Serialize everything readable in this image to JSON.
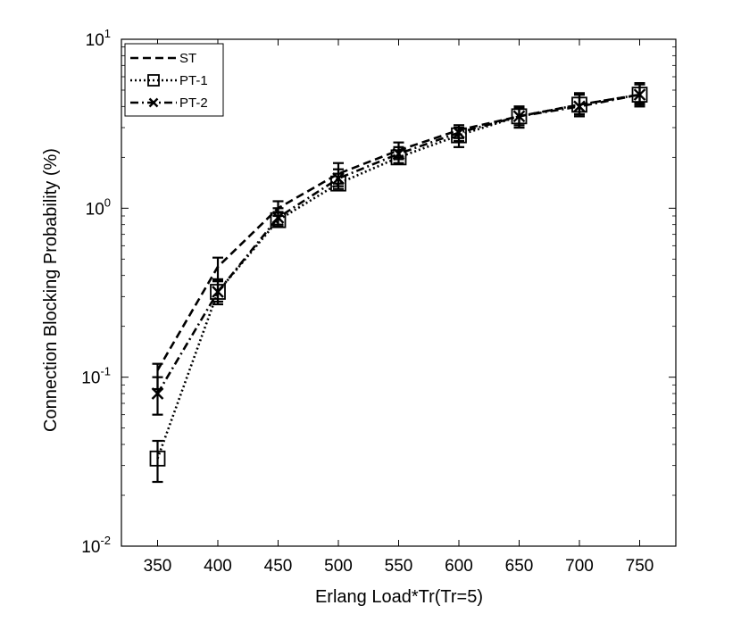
{
  "chart_data": {
    "type": "line",
    "xlabel": "Erlang Load*Tr(Tr=5)",
    "ylabel": "Connection Blocking Probability (%)",
    "x": [
      350,
      400,
      450,
      500,
      550,
      600,
      650,
      700,
      750
    ],
    "xlim": [
      320,
      780
    ],
    "xticks": [
      350,
      400,
      450,
      500,
      550,
      600,
      650,
      700,
      750
    ],
    "yscale": "log",
    "ylim": [
      0.01,
      10
    ],
    "yticks": [
      {
        "value": 0.01,
        "base": "10",
        "exp": "-2"
      },
      {
        "value": 0.1,
        "base": "10",
        "exp": "-1"
      },
      {
        "value": 1,
        "base": "10",
        "exp": "0"
      },
      {
        "value": 10,
        "base": "10",
        "exp": "1"
      }
    ],
    "grid": false,
    "legend_position": "top-left",
    "series": [
      {
        "name": "ST",
        "line_style": "dashed",
        "marker": "none",
        "values": [
          0.11,
          0.45,
          1.0,
          1.6,
          2.2,
          2.9,
          3.5,
          4.1,
          4.7
        ],
        "err_low": [
          0.085,
          0.37,
          0.9,
          1.4,
          2.0,
          2.6,
          3.1,
          3.6,
          4.2
        ],
        "err_high": [
          0.12,
          0.51,
          1.1,
          1.85,
          2.45,
          3.1,
          4.0,
          4.7,
          5.5
        ]
      },
      {
        "name": "PT-1",
        "line_style": "dotted",
        "marker": "square",
        "values": [
          0.033,
          0.32,
          0.85,
          1.4,
          2.0,
          2.7,
          3.5,
          4.1,
          4.7
        ],
        "err_low": [
          0.024,
          0.27,
          0.78,
          1.3,
          1.85,
          2.3,
          3.0,
          3.5,
          4.0
        ],
        "err_high": [
          0.042,
          0.38,
          0.95,
          1.6,
          2.2,
          3.0,
          3.9,
          4.8,
          5.5
        ]
      },
      {
        "name": "PT-2",
        "line_style": "dashdot",
        "marker": "x",
        "values": [
          0.08,
          0.32,
          0.88,
          1.5,
          2.1,
          2.8,
          3.5,
          4.0,
          4.7
        ],
        "err_low": [
          0.06,
          0.28,
          0.8,
          1.35,
          1.95,
          2.5,
          3.0,
          3.5,
          4.1
        ],
        "err_high": [
          0.1,
          0.37,
          1.0,
          1.7,
          2.3,
          3.0,
          4.0,
          4.7,
          5.4
        ]
      }
    ]
  }
}
